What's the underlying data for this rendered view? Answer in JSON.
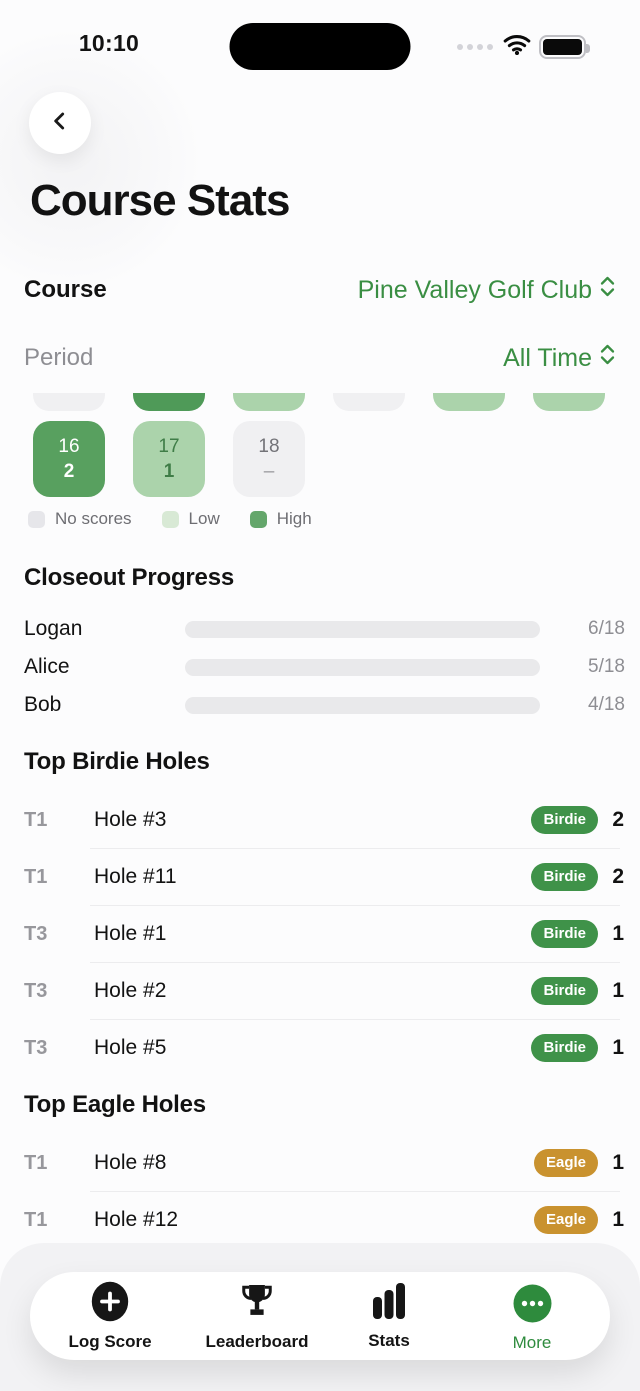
{
  "status_bar": {
    "time": "10:10"
  },
  "header": {
    "title": "Course Stats"
  },
  "filters": {
    "course_label": "Course",
    "course_value": "Pine Valley Golf Club",
    "period_label": "Period",
    "period_value": "All Time"
  },
  "hole_grid": {
    "partial_row_states": [
      "none",
      "high",
      "low",
      "none",
      "low",
      "low"
    ],
    "cells": [
      {
        "hole": "16",
        "score": "2",
        "state": "high"
      },
      {
        "hole": "17",
        "score": "1",
        "state": "low"
      },
      {
        "hole": "18",
        "score": "–",
        "state": "none"
      }
    ],
    "legend": [
      {
        "label": "No scores",
        "state": "none"
      },
      {
        "label": "Low",
        "state": "low"
      },
      {
        "label": "High",
        "state": "high"
      }
    ]
  },
  "closeout": {
    "title": "Closeout Progress",
    "rows": [
      {
        "name": "Logan",
        "value": "6/18",
        "completed": 6,
        "total": 18
      },
      {
        "name": "Alice",
        "value": "5/18",
        "completed": 5,
        "total": 18
      },
      {
        "name": "Bob",
        "value": "4/18",
        "completed": 4,
        "total": 18
      }
    ]
  },
  "top_birdie": {
    "title": "Top Birdie Holes",
    "rows": [
      {
        "rank": "T1",
        "hole": "Hole #3",
        "badge": "Birdie",
        "count": "2"
      },
      {
        "rank": "T1",
        "hole": "Hole #11",
        "badge": "Birdie",
        "count": "2"
      },
      {
        "rank": "T3",
        "hole": "Hole #1",
        "badge": "Birdie",
        "count": "1"
      },
      {
        "rank": "T3",
        "hole": "Hole #2",
        "badge": "Birdie",
        "count": "1"
      },
      {
        "rank": "T3",
        "hole": "Hole #5",
        "badge": "Birdie",
        "count": "1"
      }
    ]
  },
  "top_eagle": {
    "title": "Top Eagle Holes",
    "rows": [
      {
        "rank": "T1",
        "hole": "Hole #8",
        "badge": "Eagle",
        "count": "1"
      },
      {
        "rank": "T1",
        "hole": "Hole #12",
        "badge": "Eagle",
        "count": "1"
      }
    ]
  },
  "tab_bar": {
    "items": [
      {
        "label": "Log Score",
        "icon": "plus-circle"
      },
      {
        "label": "Leaderboard",
        "icon": "trophy"
      },
      {
        "label": "Stats",
        "icon": "bar-chart"
      },
      {
        "label": "More",
        "icon": "ellipsis",
        "active": true
      }
    ]
  },
  "colors": {
    "green-text": "#3a8e43",
    "cell-high": "#58a05f",
    "cell-high-partial": "#4f9a58",
    "cell-low": "#abd3ab",
    "cell-none": "#f0f0f2",
    "legend-none": "#e6e6ea",
    "legend-low": "#d8e9d5",
    "legend-high": "#64a66b",
    "progress-track": "#e9e9eb",
    "progress-fill": "#6aa871",
    "badge-birdie": "#3f9249",
    "badge-eagle": "#c9922f",
    "more-green": "#2e8b3d"
  }
}
